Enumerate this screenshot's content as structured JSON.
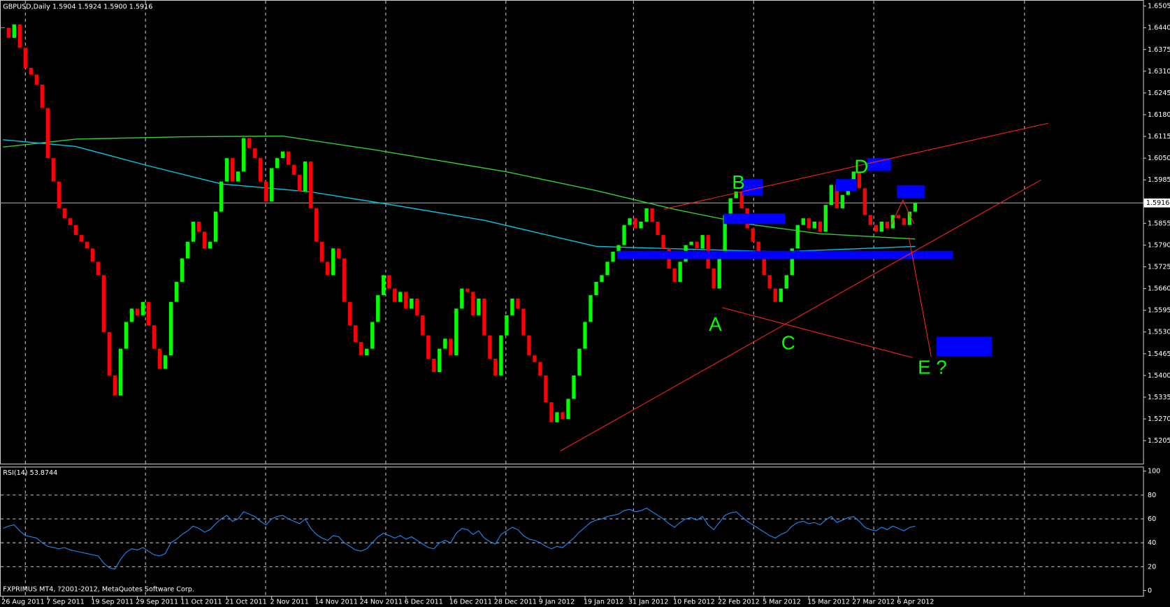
{
  "chart_data": {
    "type": "candlestick",
    "title": "GBPUSD,Daily  1.5904 1.5924 1.5900 1.5916",
    "footer": "FXPRIMUS MT4, ?2001-2012, MetaQuotes Software Corp.",
    "up_color": "#00ff00",
    "down_color": "#ff0000",
    "categories": [
      "26 Aug 2011",
      null,
      null,
      null,
      null,
      null,
      null,
      null,
      "7 Sep 2011",
      null,
      null,
      null,
      null,
      null,
      null,
      null,
      "19 Sep 2011",
      null,
      null,
      null,
      null,
      null,
      null,
      null,
      "29 Sep 2011",
      null,
      null,
      null,
      null,
      null,
      null,
      null,
      "11 Oct 2011",
      null,
      null,
      null,
      null,
      null,
      null,
      null,
      "21 Oct 2011",
      null,
      null,
      null,
      null,
      null,
      null,
      null,
      "2 Nov 2011",
      null,
      null,
      null,
      null,
      null,
      null,
      null,
      "14 Nov 2011",
      null,
      null,
      null,
      null,
      null,
      null,
      null,
      "24 Nov 2011",
      null,
      null,
      null,
      null,
      null,
      null,
      null,
      "6 Dec 2011",
      null,
      null,
      null,
      null,
      null,
      null,
      null,
      "16 Dec 2011",
      null,
      null,
      null,
      null,
      null,
      null,
      null,
      "28 Dec 2011",
      null,
      null,
      null,
      null,
      null,
      null,
      null,
      "9 Jan 2012",
      null,
      null,
      null,
      null,
      null,
      null,
      null,
      "19 Jan 2012",
      null,
      null,
      null,
      null,
      null,
      null,
      null,
      "31 Jan 2012",
      null,
      null,
      null,
      null,
      null,
      null,
      null,
      "10 Feb 2012",
      null,
      null,
      null,
      null,
      null,
      null,
      null,
      "22 Feb 2012",
      null,
      null,
      null,
      null,
      null,
      null,
      null,
      "5 Mar 2012",
      null,
      null,
      null,
      null,
      null,
      null,
      null,
      "15 Mar 2012",
      null,
      null,
      null,
      null,
      null,
      null,
      null,
      "27 Mar 2012",
      null,
      null,
      null,
      null,
      null,
      null,
      null,
      "6 Apr 2012",
      null,
      null,
      null
    ],
    "closes": [
      1.644,
      1.641,
      1.645,
      1.638,
      1.632,
      1.63,
      1.627,
      1.62,
      1.605,
      1.598,
      1.59,
      1.587,
      1.585,
      1.582,
      1.58,
      1.578,
      1.574,
      1.57,
      1.553,
      1.54,
      1.534,
      1.548,
      1.556,
      1.56,
      1.558,
      1.562,
      1.555,
      1.548,
      1.542,
      1.546,
      1.562,
      1.568,
      1.575,
      1.58,
      1.586,
      1.583,
      1.578,
      1.58,
      1.589,
      1.598,
      1.605,
      1.598,
      1.601,
      1.611,
      1.608,
      1.605,
      1.598,
      1.592,
      1.602,
      1.605,
      1.607,
      1.603,
      1.6,
      1.595,
      1.604,
      1.59,
      1.58,
      1.574,
      1.57,
      1.578,
      1.575,
      1.562,
      1.555,
      1.55,
      1.546,
      1.548,
      1.556,
      1.564,
      1.57,
      1.566,
      1.562,
      1.565,
      1.56,
      1.563,
      1.558,
      1.552,
      1.545,
      1.541,
      1.548,
      1.551,
      1.546,
      1.56,
      1.566,
      1.565,
      1.558,
      1.563,
      1.552,
      1.545,
      1.54,
      1.552,
      1.558,
      1.563,
      1.56,
      1.552,
      1.546,
      1.544,
      1.54,
      1.532,
      1.526,
      1.529,
      1.527,
      1.533,
      1.54,
      1.548,
      1.556,
      1.564,
      1.568,
      1.57,
      1.574,
      1.577,
      1.579,
      1.585,
      1.587,
      1.584,
      1.586,
      1.59,
      1.586,
      1.582,
      1.578,
      1.572,
      1.568,
      1.574,
      1.579,
      1.58,
      1.578,
      1.582,
      1.572,
      1.566,
      1.576,
      1.588,
      1.593,
      1.595,
      1.59,
      1.584,
      1.58,
      1.575,
      1.57,
      1.566,
      1.562,
      1.566,
      1.57,
      1.578,
      1.585,
      1.587,
      1.584,
      1.586,
      1.583,
      1.591,
      1.597,
      1.59,
      1.594,
      1.598,
      1.601,
      1.596,
      1.588,
      1.585,
      1.583,
      1.586,
      1.584,
      1.588,
      1.587,
      1.585,
      1.589,
      1.5916
    ],
    "ma_lines": [
      {
        "color": "#32cd32",
        "x": [
          0,
          13,
          33,
          50,
          66,
          90,
          106,
          120,
          133,
          146,
          163
        ],
        "values": [
          1.6083,
          1.6107,
          1.6114,
          1.6116,
          1.6076,
          1.6009,
          1.5953,
          1.5897,
          1.5853,
          1.5824,
          1.5808
        ]
      },
      {
        "color": "#00c8e6",
        "x": [
          0,
          13,
          26,
          39,
          55,
          70,
          86,
          106,
          120,
          139,
          163
        ],
        "values": [
          1.6105,
          1.6085,
          1.6027,
          1.5973,
          1.5949,
          1.5909,
          1.5864,
          1.5786,
          1.5779,
          1.577,
          1.5786
        ]
      }
    ],
    "ylim": [
      1.5134,
      1.6523
    ],
    "yticks": [
      {
        "value": 1.6505,
        "label": "1.6505"
      },
      {
        "value": 1.644,
        "label": "1.6440"
      },
      {
        "value": 1.6375,
        "label": "1.6375"
      },
      {
        "value": 1.631,
        "label": "1.6310"
      },
      {
        "value": 1.6245,
        "label": "1.6245"
      },
      {
        "value": 1.618,
        "label": "1.6180"
      },
      {
        "value": 1.6115,
        "label": "1.6115"
      },
      {
        "value": 1.605,
        "label": "1.6050"
      },
      {
        "value": 1.5985,
        "label": "1.5985"
      },
      {
        "value": 1.5855,
        "label": "1.5855"
      },
      {
        "value": 1.579,
        "label": "1.5790"
      },
      {
        "value": 1.5725,
        "label": "1.5725"
      },
      {
        "value": 1.566,
        "label": "1.5660"
      },
      {
        "value": 1.5595,
        "label": "1.5595"
      },
      {
        "value": 1.553,
        "label": "1.5530"
      },
      {
        "value": 1.5465,
        "label": "1.5465"
      },
      {
        "value": 1.54,
        "label": "1.5400"
      },
      {
        "value": 1.5335,
        "label": "1.5335"
      },
      {
        "value": 1.527,
        "label": "1.5270"
      },
      {
        "value": 1.5205,
        "label": "1.5205"
      }
    ],
    "current_price": {
      "value": 1.5916,
      "label": "1.5916"
    },
    "annotations": [
      "A",
      "B",
      "C",
      "D",
      "E ?"
    ],
    "rsi": {
      "label": "RSI(14) 53.8744",
      "color": "#1e90ff",
      "ylim": [
        0,
        100
      ],
      "yticks": [
        0,
        20,
        40,
        60,
        80,
        100
      ],
      "values": [
        52,
        54,
        55,
        50,
        46,
        45,
        44,
        40,
        37,
        36,
        35,
        36,
        34,
        33,
        32,
        31,
        30,
        29,
        23,
        19,
        18,
        26,
        32,
        35,
        34,
        36,
        33,
        30,
        29,
        31,
        40,
        43,
        47,
        50,
        54,
        52,
        49,
        51,
        56,
        60,
        63,
        58,
        60,
        66,
        64,
        62,
        58,
        55,
        60,
        62,
        63,
        60,
        58,
        56,
        60,
        52,
        47,
        44,
        42,
        46,
        45,
        40,
        37,
        34,
        33,
        35,
        40,
        45,
        48,
        46,
        44,
        46,
        43,
        45,
        42,
        39,
        36,
        35,
        40,
        42,
        40,
        48,
        52,
        51,
        47,
        50,
        44,
        41,
        39,
        47,
        50,
        53,
        51,
        46,
        43,
        42,
        40,
        37,
        35,
        37,
        36,
        40,
        44,
        49,
        53,
        57,
        59,
        60,
        62,
        63,
        64,
        67,
        68,
        66,
        67,
        69,
        66,
        63,
        60,
        56,
        53,
        57,
        60,
        61,
        59,
        62,
        55,
        51,
        57,
        63,
        65,
        66,
        62,
        58,
        55,
        52,
        49,
        46,
        44,
        47,
        49,
        54,
        57,
        58,
        56,
        57,
        55,
        59,
        62,
        57,
        59,
        61,
        62,
        58,
        53,
        51,
        50,
        53,
        51,
        54,
        52,
        50,
        53,
        53.8744
      ]
    }
  }
}
